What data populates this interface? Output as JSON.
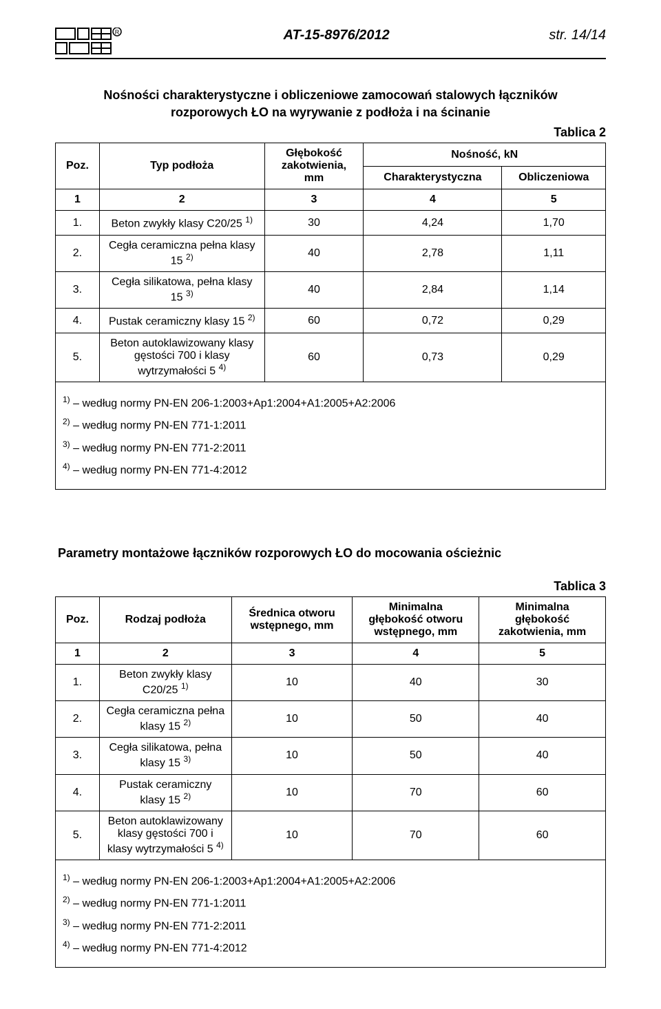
{
  "header": {
    "doc_id": "AT-15-8976/2012",
    "page": "str. 14/14"
  },
  "table2": {
    "title_line1": "Nośności charakterystyczne i obliczeniowe zamocowań stalowych łączników",
    "title_line2": "rozporowych ŁO na wyrywanie z podłoża i na ścinanie",
    "label": "Tablica 2",
    "col_poz": "Poz.",
    "col_typ": "Typ podłoża",
    "col_glebokosc_line1": "Głębokość",
    "col_glebokosc_line2": "zakotwienia,",
    "col_glebokosc_line3": "mm",
    "col_nosnosc": "Nośność, kN",
    "col_char": "Charakterystyczna",
    "col_obl": "Obliczeniowa",
    "hdr_nums": [
      "1",
      "2",
      "3",
      "4",
      "5"
    ],
    "rows": [
      {
        "poz": "1.",
        "typ": "Beton zwykły klasy C20/25 ",
        "sup": "1)",
        "g": "30",
        "c": "4,24",
        "o": "1,70"
      },
      {
        "poz": "2.",
        "typ": "Cegła ceramiczna pełna klasy 15 ",
        "sup": "2)",
        "g": "40",
        "c": "2,78",
        "o": "1,11"
      },
      {
        "poz": "3.",
        "typ": "Cegła silikatowa, pełna klasy 15 ",
        "sup": "3)",
        "g": "40",
        "c": "2,84",
        "o": "1,14"
      },
      {
        "poz": "4.",
        "typ": "Pustak ceramiczny klasy 15 ",
        "sup": "2)",
        "g": "60",
        "c": "0,72",
        "o": "0,29"
      },
      {
        "poz": "5.",
        "typ": "Beton autoklawizowany klasy gęstości 700 i klasy wytrzymałości 5 ",
        "sup": "4)",
        "g": "60",
        "c": "0,73",
        "o": "0,29"
      }
    ],
    "notes": [
      {
        "sup": "1)",
        "text": " – według normy PN-EN 206-1:2003+Ap1:2004+A1:2005+A2:2006"
      },
      {
        "sup": "2)",
        "text": " – według normy PN-EN 771-1:2011"
      },
      {
        "sup": "3)",
        "text": " – według normy PN-EN 771-2:2011"
      },
      {
        "sup": "4)",
        "text": " – według normy PN-EN 771-4:2012"
      }
    ]
  },
  "table3": {
    "title": "Parametry montażowe łączników rozporowych ŁO do mocowania ościeżnic",
    "label": "Tablica 3",
    "col_poz": "Poz.",
    "col_rodzaj": "Rodzaj podłoża",
    "col_srednica_l1": "Średnica otworu",
    "col_srednica_l2": "wstępnego, mm",
    "col_min_otw_l1": "Minimalna",
    "col_min_otw_l2": "głębokość otworu",
    "col_min_otw_l3": "wstępnego, mm",
    "col_min_zak_l1": "Minimalna",
    "col_min_zak_l2": "głębokość",
    "col_min_zak_l3": "zakotwienia, mm",
    "hdr_nums": [
      "1",
      "2",
      "3",
      "4",
      "5"
    ],
    "rows": [
      {
        "poz": "1.",
        "typ": "Beton zwykły klasy C20/25 ",
        "sup": "1)",
        "s": "10",
        "mo": "40",
        "mz": "30"
      },
      {
        "poz": "2.",
        "typ": "Cegła ceramiczna pełna klasy 15 ",
        "sup": "2)",
        "s": "10",
        "mo": "50",
        "mz": "40"
      },
      {
        "poz": "3.",
        "typ": "Cegła silikatowa, pełna klasy 15 ",
        "sup": "3)",
        "s": "10",
        "mo": "50",
        "mz": "40"
      },
      {
        "poz": "4.",
        "typ": "Pustak ceramiczny klasy 15 ",
        "sup": "2)",
        "s": "10",
        "mo": "70",
        "mz": "60"
      },
      {
        "poz": "5.",
        "typ": "Beton autoklawizowany klasy gęstości 700 i klasy wytrzymałości 5 ",
        "sup": "4)",
        "s": "10",
        "mo": "70",
        "mz": "60"
      }
    ],
    "notes": [
      {
        "sup": "1)",
        "text": " – według normy PN-EN 206-1:2003+Ap1:2004+A1:2005+A2:2006"
      },
      {
        "sup": "2)",
        "text": " – według normy PN-EN 771-1:2011"
      },
      {
        "sup": "3)",
        "text": " – według normy PN-EN 771-2:2011"
      },
      {
        "sup": "4)",
        "text": " – według normy PN-EN 771-4:2012"
      }
    ]
  }
}
